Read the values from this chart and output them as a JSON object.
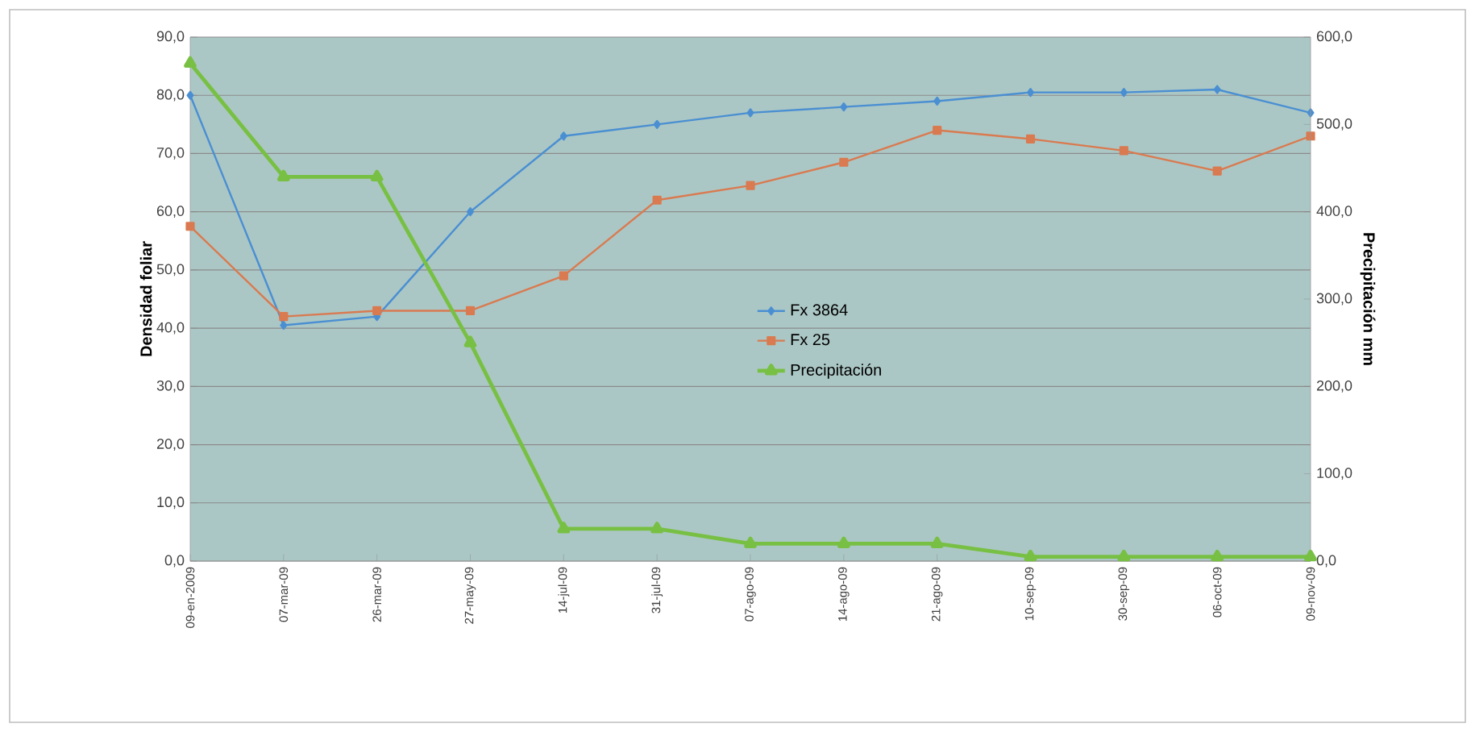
{
  "chart_data": {
    "type": "line",
    "ylabel": "Densidad foliar",
    "y2label": "Precipitación mm",
    "categories": [
      "09-en-2009",
      "07-mar-09",
      "26-mar-09",
      "27-may-09",
      "14-jul-09",
      "31-jul-09",
      "07-ago-09",
      "14-ago-09",
      "21-ago-09",
      "10-sep-09",
      "30-sep-09",
      "06-oct-09",
      "09-nov-09"
    ],
    "series": [
      {
        "name": "Fx 3864",
        "color": "#4a8fd2",
        "marker": "diamond",
        "values": [
          80,
          40.5,
          42,
          60,
          73,
          75,
          77,
          78,
          79,
          80.5,
          80.5,
          81,
          77
        ]
      },
      {
        "name": "Fx 25",
        "color": "#d97a50",
        "marker": "square",
        "values": [
          57.5,
          42,
          43,
          43,
          49,
          62,
          64.5,
          68.5,
          74,
          72.5,
          70.5,
          67,
          73
        ]
      },
      {
        "name": "Precipitación",
        "color": "#78c044",
        "marker": "triangle",
        "axis": "y2",
        "values": [
          570,
          440,
          440,
          250,
          37,
          37,
          20,
          20,
          20,
          5,
          5,
          5,
          5
        ]
      }
    ],
    "ylim": [
      0,
      90
    ],
    "yticks": [
      {
        "value": 0,
        "label": "0,0"
      },
      {
        "value": 10,
        "label": "10,0"
      },
      {
        "value": 20,
        "label": "20,0"
      },
      {
        "value": 30,
        "label": "30,0"
      },
      {
        "value": 40,
        "label": "40,0"
      },
      {
        "value": 50,
        "label": "50,0"
      },
      {
        "value": 60,
        "label": "60,0"
      },
      {
        "value": 70,
        "label": "70,0"
      },
      {
        "value": 80,
        "label": "80,0"
      },
      {
        "value": 90,
        "label": "90,0"
      }
    ],
    "y2lim": [
      0,
      600
    ],
    "y2ticks": [
      {
        "value": 0,
        "label": "0,0"
      },
      {
        "value": 100,
        "label": "100,0"
      },
      {
        "value": 200,
        "label": "200,0"
      },
      {
        "value": 300,
        "label": "300,0"
      },
      {
        "value": 400,
        "label": "400,0"
      },
      {
        "value": 500,
        "label": "500,0"
      },
      {
        "value": 600,
        "label": "600,0"
      }
    ],
    "grid": "y",
    "legend": "center",
    "line_style": "solid"
  }
}
